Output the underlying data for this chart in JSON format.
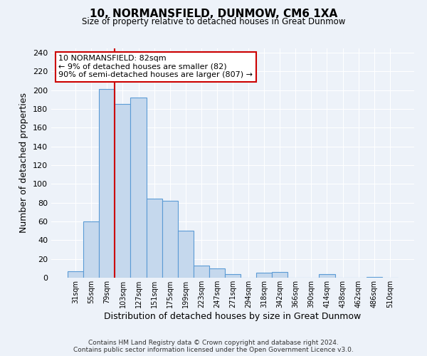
{
  "title": "10, NORMANSFIELD, DUNMOW, CM6 1XA",
  "subtitle": "Size of property relative to detached houses in Great Dunmow",
  "xlabel": "Distribution of detached houses by size in Great Dunmow",
  "ylabel": "Number of detached properties",
  "bin_labels": [
    "31sqm",
    "55sqm",
    "79sqm",
    "103sqm",
    "127sqm",
    "151sqm",
    "175sqm",
    "199sqm",
    "223sqm",
    "247sqm",
    "271sqm",
    "294sqm",
    "318sqm",
    "342sqm",
    "366sqm",
    "390sqm",
    "414sqm",
    "438sqm",
    "462sqm",
    "486sqm",
    "510sqm"
  ],
  "bar_heights": [
    7,
    60,
    201,
    185,
    192,
    84,
    82,
    50,
    13,
    10,
    4,
    0,
    5,
    6,
    0,
    0,
    4,
    0,
    0,
    1,
    0
  ],
  "bar_color": "#c5d8ed",
  "bar_edge_color": "#5b9bd5",
  "vline_x_pos": 2.5,
  "vline_color": "#cc0000",
  "annotation_title": "10 NORMANSFIELD: 82sqm",
  "annotation_line1": "← 9% of detached houses are smaller (82)",
  "annotation_line2": "90% of semi-detached houses are larger (807) →",
  "annotation_box_color": "#ffffff",
  "annotation_box_edge": "#cc0000",
  "ylim": [
    0,
    245
  ],
  "yticks": [
    0,
    20,
    40,
    60,
    80,
    100,
    120,
    140,
    160,
    180,
    200,
    220,
    240
  ],
  "footer1": "Contains HM Land Registry data © Crown copyright and database right 2024.",
  "footer2": "Contains public sector information licensed under the Open Government Licence v3.0.",
  "bg_color": "#edf2f9",
  "plot_bg_color": "#edf2f9"
}
